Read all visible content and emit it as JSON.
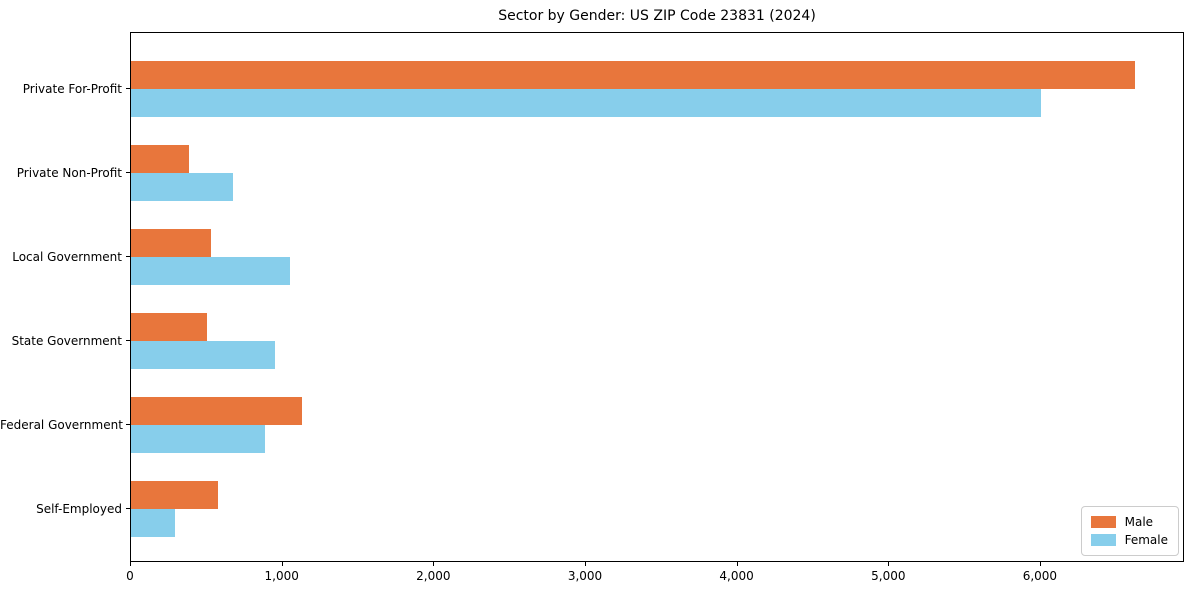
{
  "title": "Sector by Gender: US ZIP Code 23831 (2024)",
  "chart_data": {
    "type": "bar",
    "orientation": "horizontal",
    "title": "Sector by Gender: US ZIP Code 23831 (2024)",
    "xlabel": "",
    "ylabel": "",
    "categories": [
      "Private For-Profit",
      "Private Non-Profit",
      "Local Government",
      "State Government",
      "Federal Government",
      "Self-Employed"
    ],
    "series": [
      {
        "name": "Male",
        "color": "#e8763c",
        "values": [
          6620,
          380,
          530,
          500,
          1130,
          575
        ]
      },
      {
        "name": "Female",
        "color": "#87ceeb",
        "values": [
          6000,
          670,
          1050,
          950,
          880,
          290
        ]
      }
    ],
    "xlim": [
      0,
      6950
    ],
    "x_ticks": [
      0,
      1000,
      2000,
      3000,
      4000,
      5000,
      6000
    ],
    "x_tick_labels": [
      "0",
      "1,000",
      "2,000",
      "3,000",
      "4,000",
      "5,000",
      "6,000"
    ],
    "grid": false,
    "legend_position": "lower right",
    "legend_labels": [
      "Male",
      "Female"
    ]
  }
}
